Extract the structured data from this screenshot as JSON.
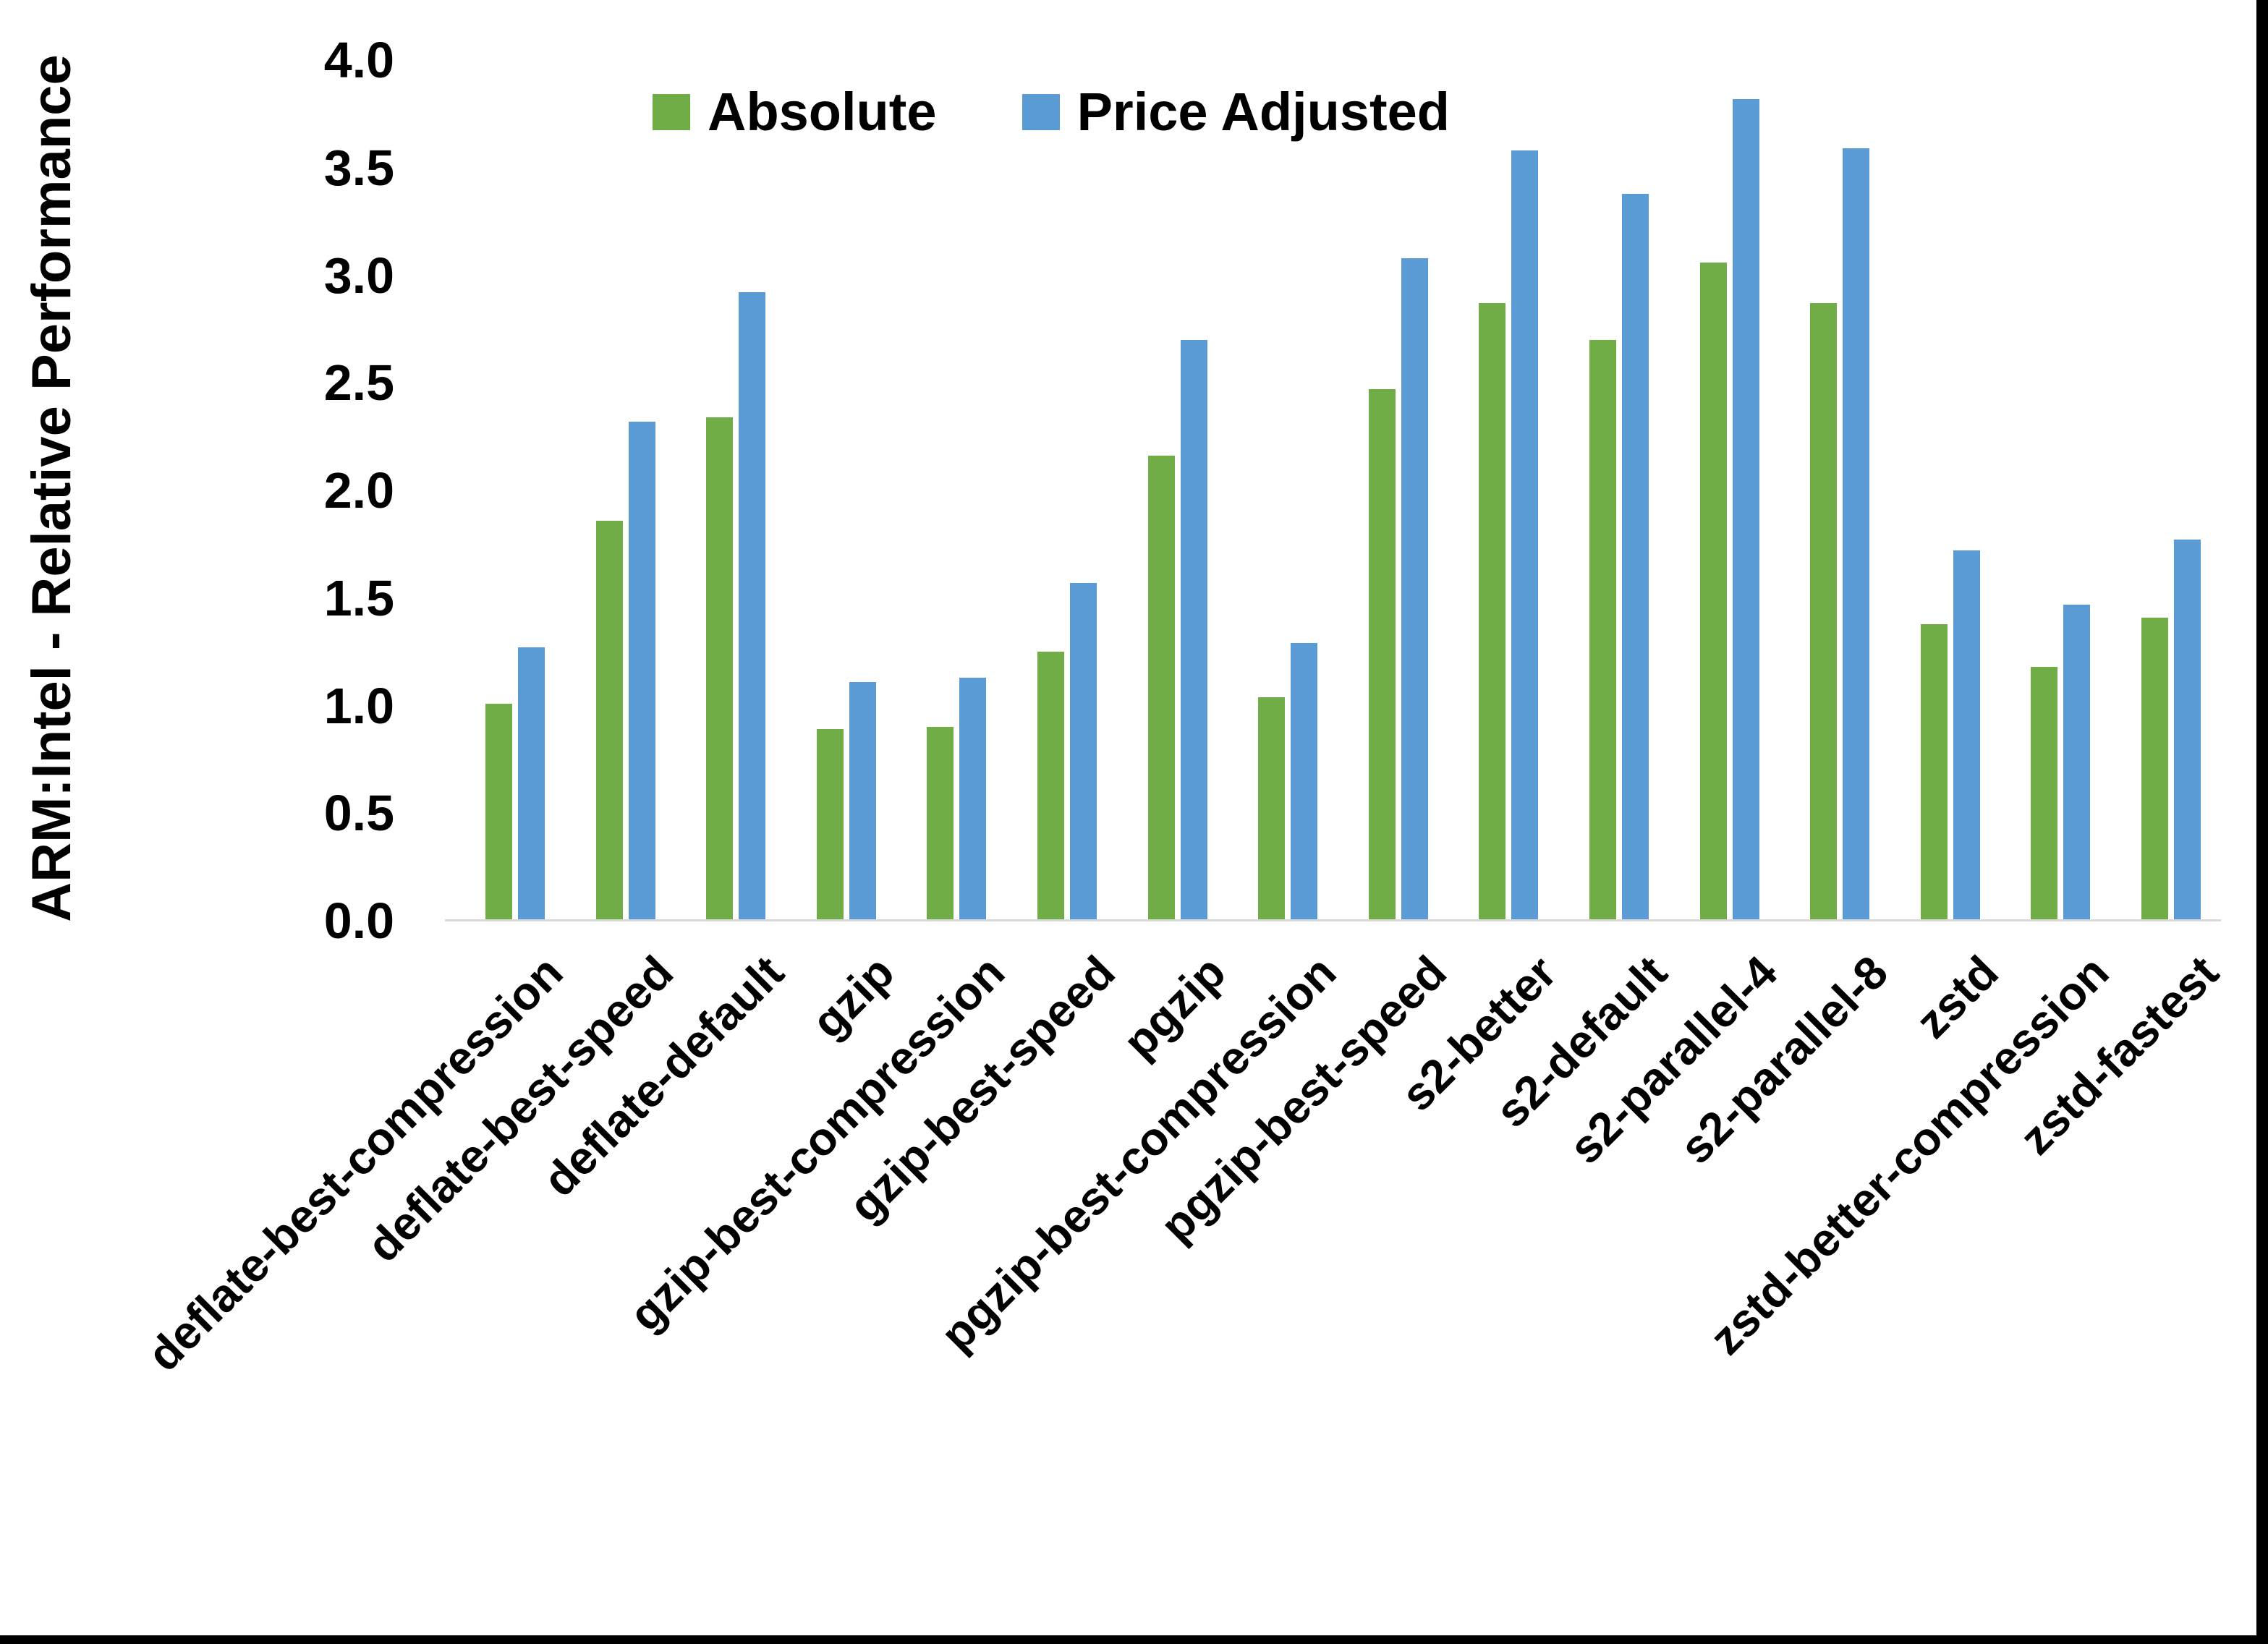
{
  "chart_data": {
    "type": "bar",
    "title": "",
    "xlabel": "",
    "ylabel": "ARM:Intel - Relative Performance",
    "ylim": [
      0.0,
      4.0
    ],
    "ytick_step": 0.5,
    "yticks": [
      "0.0",
      "0.5",
      "1.0",
      "1.5",
      "2.0",
      "2.5",
      "3.0",
      "3.5",
      "4.0"
    ],
    "grid": false,
    "legend_position": "top-center",
    "categories": [
      "deflate-best-compression",
      "deflate-best-speed",
      "deflate-default",
      "gzip",
      "gzip-best-compression",
      "gzip-best-speed",
      "pgzip",
      "pgzip-best-compression",
      "pgzip-best-speed",
      "s2-better",
      "s2-default",
      "s2-parallel-4",
      "s2-parallel-8",
      "zstd",
      "zstd-better-compression",
      "zstd-fastest"
    ],
    "series": [
      {
        "name": "Absolute",
        "color": "#70AD47",
        "values": [
          1.01,
          1.86,
          2.34,
          0.89,
          0.9,
          1.25,
          2.16,
          1.04,
          2.47,
          2.87,
          2.7,
          3.06,
          2.87,
          1.38,
          1.18,
          1.41
        ]
      },
      {
        "name": "Price Adjusted",
        "color": "#5B9BD5",
        "values": [
          1.27,
          2.32,
          2.92,
          1.11,
          1.13,
          1.57,
          2.7,
          1.29,
          3.08,
          3.58,
          3.38,
          3.82,
          3.59,
          1.72,
          1.47,
          1.77
        ]
      }
    ]
  },
  "colors": {
    "axis_line": "#D9D9D9",
    "text": "#000000",
    "frame": "#000000"
  }
}
